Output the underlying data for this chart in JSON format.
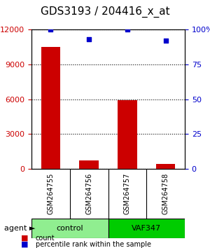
{
  "title": "GDS3193 / 204416_x_at",
  "samples": [
    "GSM264755",
    "GSM264756",
    "GSM264757",
    "GSM264758"
  ],
  "counts": [
    10500,
    700,
    5900,
    400
  ],
  "percentiles": [
    100,
    93,
    100,
    92
  ],
  "groups": [
    "control",
    "control",
    "VAF347",
    "VAF347"
  ],
  "group_labels": [
    "control",
    "VAF347"
  ],
  "group_colors": [
    "#90EE90",
    "#00CC00"
  ],
  "bar_color": "#CC0000",
  "dot_color": "#0000CC",
  "ylabel_left": "",
  "ylabel_right": "",
  "ylim_left": [
    0,
    12000
  ],
  "ylim_right": [
    0,
    100
  ],
  "yticks_left": [
    0,
    3000,
    6000,
    9000,
    12000
  ],
  "yticks_right": [
    0,
    25,
    50,
    75,
    100
  ],
  "ytick_labels_right": [
    "0",
    "25",
    "50",
    "75",
    "100%"
  ],
  "legend_count_label": "count",
  "legend_pct_label": "percentile rank within the sample",
  "agent_label": "agent",
  "background_color": "#ffffff",
  "sample_box_color": "#cccccc",
  "title_fontsize": 11,
  "tick_fontsize": 8,
  "label_fontsize": 8
}
